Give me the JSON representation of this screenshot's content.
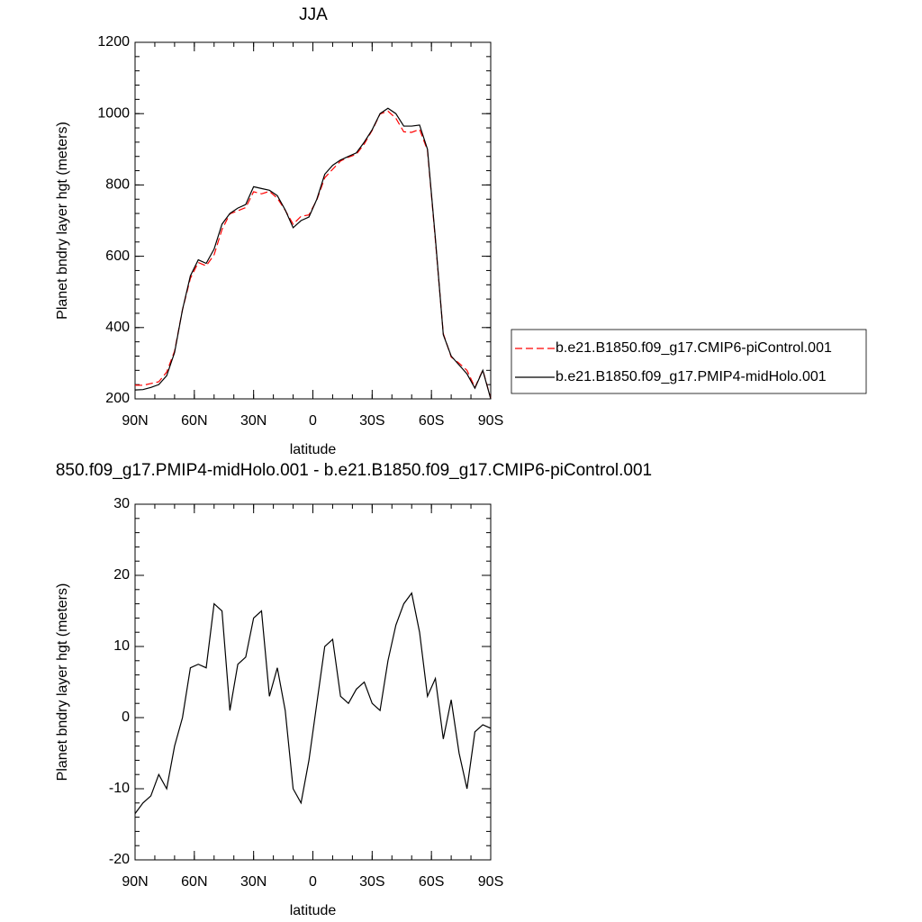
{
  "chart_data": [
    {
      "type": "line",
      "title": "JJA",
      "x_label": "latitude",
      "y_label": "Planet bndry layer hgt (meters)",
      "x": [
        90,
        86,
        82,
        78,
        74,
        70,
        66,
        62,
        58,
        54,
        50,
        46,
        42,
        38,
        34,
        30,
        26,
        22,
        18,
        14,
        10,
        6,
        2,
        -2,
        -6,
        -10,
        -14,
        -18,
        -22,
        -26,
        -30,
        -34,
        -38,
        -42,
        -46,
        -50,
        -54,
        -58,
        -62,
        -66,
        -70,
        -74,
        -78,
        -82,
        -86,
        -90
      ],
      "series": [
        {
          "name": "b.e21.B1850.f09_g17.CMIP6-piControl.001",
          "color": "#ff0000",
          "dash": true,
          "values": [
            238.5,
            238,
            243,
            248,
            275,
            334,
            450,
            538,
            582.5,
            573,
            604,
            675,
            719,
            727.5,
            736.5,
            781,
            775,
            782,
            763,
            729,
            690,
            712,
            716,
            758,
            820,
            844,
            867,
            878,
            886,
            915,
            953,
            999,
            1007,
            987,
            949,
            947.5,
            956,
            897,
            644.5,
            383,
            317.5,
            300,
            280,
            232,
            281,
            201.5
          ]
        },
        {
          "name": "b.e21.B1850.f09_g17.PMIP4-midHolo.001",
          "color": "#000000",
          "dash": false,
          "values": [
            225,
            226,
            232,
            240,
            265,
            330,
            450,
            545,
            590,
            580,
            620,
            690,
            720,
            735,
            745,
            795,
            790,
            785,
            770,
            730,
            680,
            700,
            710,
            760,
            830,
            855,
            870,
            880,
            890,
            920,
            955,
            1000,
            1015,
            1000,
            965,
            965,
            968,
            900,
            650,
            380,
            320,
            295,
            270,
            230,
            280,
            200
          ]
        }
      ],
      "xlim": [
        90,
        -90
      ],
      "ylim": [
        200,
        1200
      ],
      "xticks": [
        {
          "value": 90,
          "label": "90N"
        },
        {
          "value": 60,
          "label": "60N"
        },
        {
          "value": 30,
          "label": "30N"
        },
        0,
        {
          "value": -30,
          "label": "30S"
        },
        {
          "value": -60,
          "label": "60S"
        },
        {
          "value": -90,
          "label": "90S"
        }
      ],
      "yticks": [
        200,
        400,
        600,
        800,
        1000,
        1200
      ]
    },
    {
      "type": "line",
      "title": "850.f09_g17.PMIP4-midHolo.001 - b.e21.B1850.f09_g17.CMIP6-piControl.001",
      "x_label": "latitude",
      "y_label": "Planet bndry layer hgt (meters)",
      "x": [
        90,
        86,
        82,
        78,
        74,
        70,
        66,
        62,
        58,
        54,
        50,
        46,
        42,
        38,
        34,
        30,
        26,
        22,
        18,
        14,
        10,
        6,
        2,
        -2,
        -6,
        -10,
        -14,
        -18,
        -22,
        -26,
        -30,
        -34,
        -38,
        -42,
        -46,
        -50,
        -54,
        -58,
        -62,
        -66,
        -70,
        -74,
        -78,
        -82,
        -86,
        -90
      ],
      "series": [
        {
          "color": "#000000",
          "dash": false,
          "values": [
            -13.5,
            -12,
            -11,
            -8,
            -10,
            -4,
            0,
            7,
            7.5,
            7,
            16,
            15,
            1,
            7.5,
            8.5,
            14,
            15,
            3,
            7,
            1,
            -10,
            -12,
            -6,
            2,
            10,
            11,
            3,
            2,
            4,
            5,
            2,
            1,
            8,
            13,
            16,
            17.5,
            12,
            3,
            5.5,
            -3,
            2.5,
            -5,
            -10,
            -2,
            -1,
            -1.5
          ]
        }
      ],
      "xlim": [
        90,
        -90
      ],
      "ylim": [
        -20,
        30
      ],
      "xticks": [
        {
          "value": 90,
          "label": "90N"
        },
        {
          "value": 60,
          "label": "60N"
        },
        {
          "value": 30,
          "label": "30N"
        },
        0,
        {
          "value": -30,
          "label": "30S"
        },
        {
          "value": -60,
          "label": "60S"
        },
        {
          "value": -90,
          "label": "90S"
        }
      ],
      "yticks": [
        -20,
        -10,
        0,
        10,
        20,
        30
      ]
    }
  ]
}
